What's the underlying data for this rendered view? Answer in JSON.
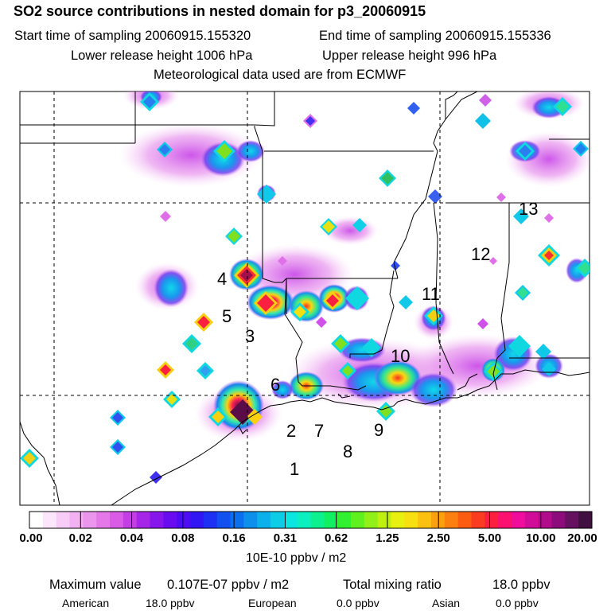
{
  "title": "SO2 source contributions in nested domain for p3_20060915",
  "header": {
    "start_time": "Start time of sampling 20060915.155320",
    "end_time": "End time of sampling 20060915.155336",
    "lower_release": "Lower release height 1006 hPa",
    "upper_release": "Upper release height  996 hPa",
    "met_data": "Meteorological data used are from ECMWF"
  },
  "map": {
    "source_labels": [
      "1",
      "2",
      "3",
      "4",
      "5",
      "6",
      "7",
      "8",
      "9",
      "10",
      "11",
      "12",
      "13"
    ]
  },
  "colorbar": {
    "tick_labels": [
      "0.00",
      "0.02",
      "0.04",
      "0.08",
      "0.16",
      "0.31",
      "0.62",
      "1.25",
      "2.50",
      "5.00",
      "10.00",
      "20.00"
    ],
    "colors": [
      "#ffffff",
      "#fbe6fb",
      "#f7ccf7",
      "#f2b1f2",
      "#ec95ec",
      "#e578e8",
      "#d95be6",
      "#c43ee6",
      "#a626e8",
      "#8716ec",
      "#6a0cf0",
      "#4e0cf4",
      "#3216f4",
      "#1e30f4",
      "#1250f0",
      "#0c70ee",
      "#0c90ec",
      "#0cb0ea",
      "#0ccce6",
      "#0ce6e0",
      "#0cf0c0",
      "#0cf090",
      "#10f060",
      "#30f030",
      "#60f020",
      "#90f018",
      "#c0f010",
      "#e8f010",
      "#f8e010",
      "#fcc010",
      "#fca010",
      "#fc8010",
      "#fc5c10",
      "#fc3c20",
      "#fc2040",
      "#fc1070",
      "#f00c9c",
      "#d00c98",
      "#b00c8c",
      "#8c0c7c",
      "#661060",
      "#401040"
    ],
    "unit": "10E-10 ppbv / m2"
  },
  "summary": {
    "max_label": "Maximum value",
    "max_value": "0.107E-07 ppbv / m2",
    "total_label": "Total mixing ratio",
    "total_value": "18.0 ppbv",
    "american_label": "American",
    "american_value": "18.0 ppbv",
    "european_label": "European",
    "european_value": "0.0 ppbv",
    "asian_label": "Asian",
    "asian_value": "0.0 ppbv"
  }
}
